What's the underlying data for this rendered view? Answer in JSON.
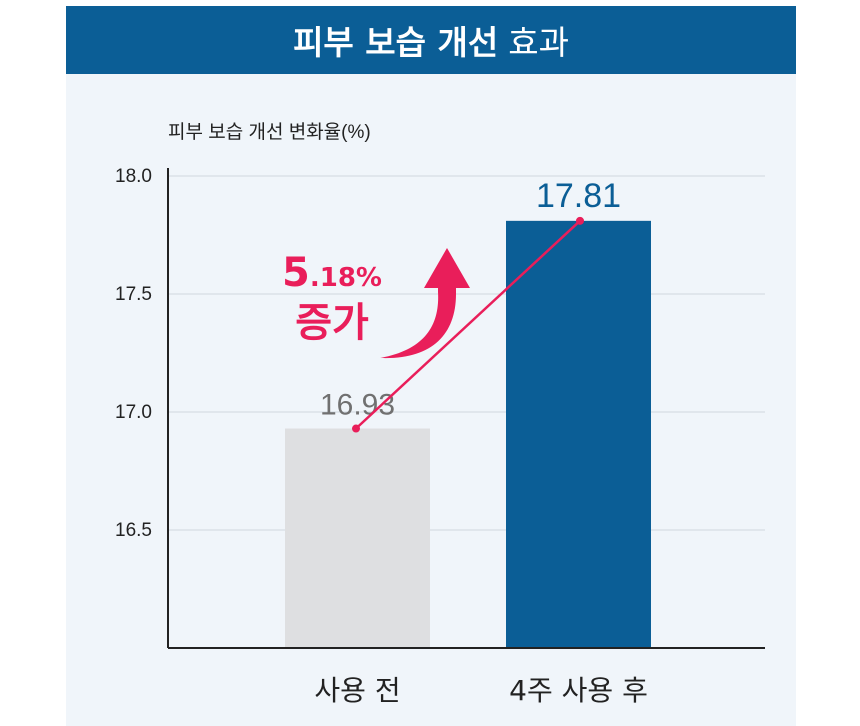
{
  "title_bold": "피부 보습 개선",
  "title_normal": "효과",
  "colors": {
    "header": "#0b5e96",
    "bar_before": "#dedfe1",
    "bar_after": "#0b5e96",
    "accent": "#e91e5a",
    "label_before": "#707070",
    "label_after": "#0b5e96",
    "background": "#f0f5fa"
  },
  "chart_data": {
    "type": "bar",
    "title": "피부 보습 개선 효과",
    "ylabel": "피부 보습 개선 변화율(%)",
    "categories": [
      "사용 전",
      "4주 사용 후"
    ],
    "values": [
      16.93,
      17.81
    ],
    "value_labels": [
      "16.93",
      "17.81"
    ],
    "ylim": [
      16.0,
      18.0
    ],
    "yticks": [
      16.5,
      17.0,
      17.5,
      18.0
    ],
    "ytick_labels": [
      "16.5",
      "17.0",
      "17.5",
      "18.0"
    ],
    "grid": true,
    "annotation": {
      "value": "5.18%",
      "value_main": "5",
      "value_rest": ".18%",
      "text": "증가"
    }
  }
}
